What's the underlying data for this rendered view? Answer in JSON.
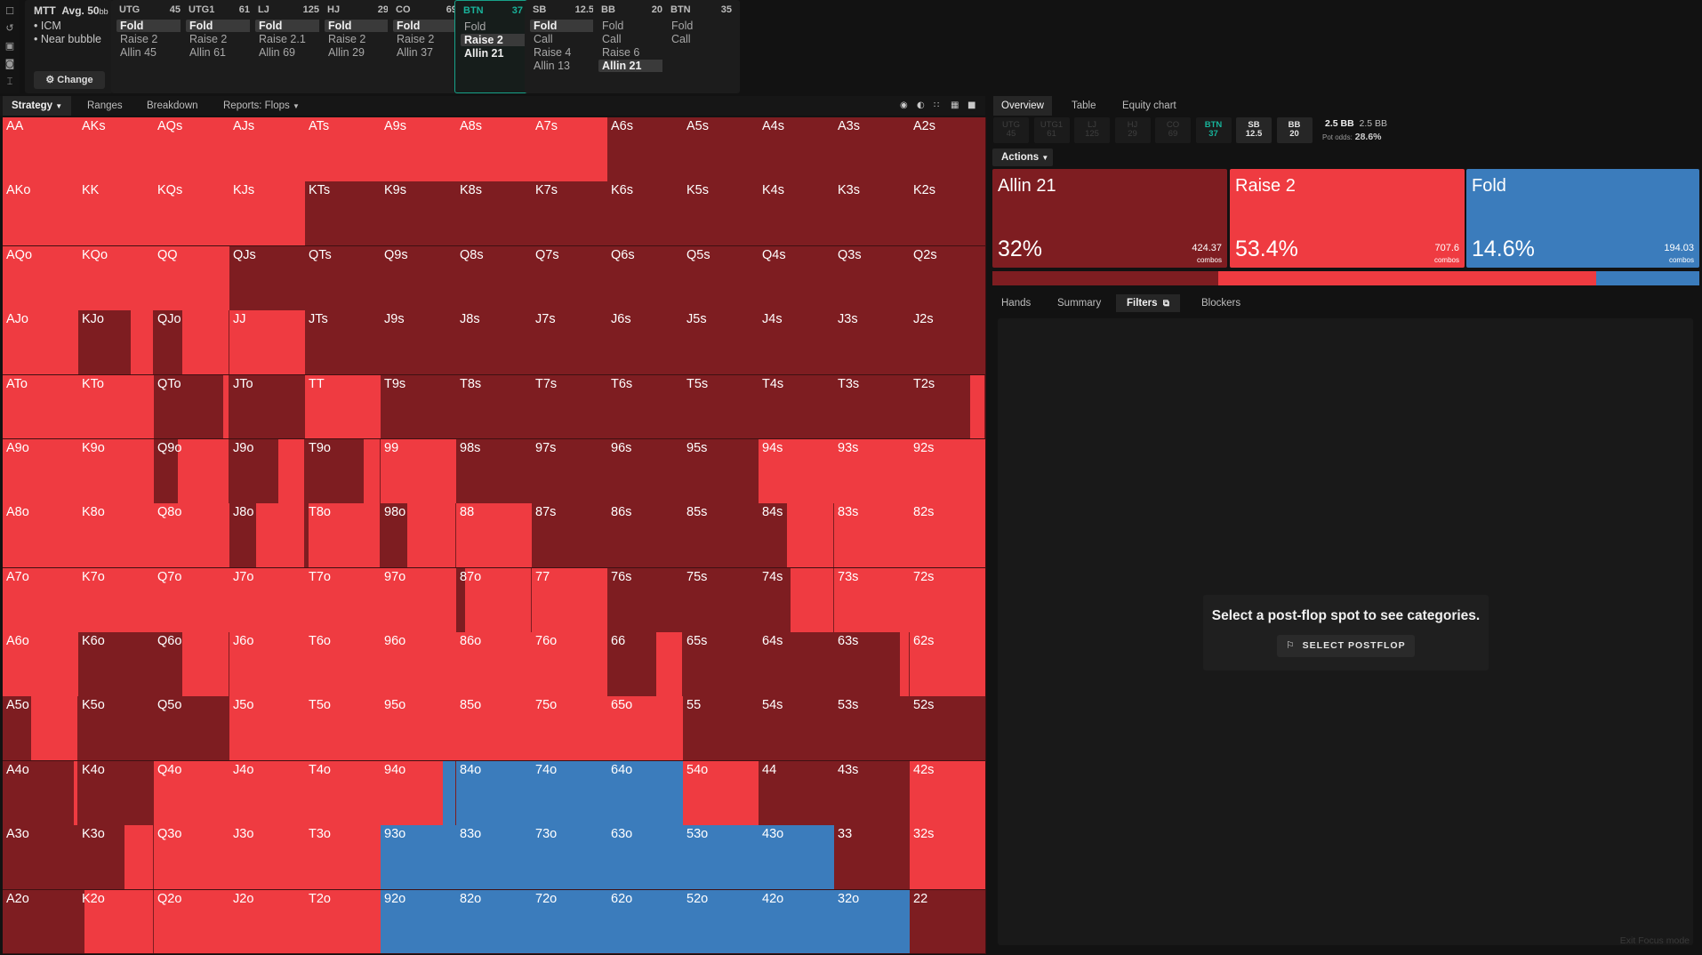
{
  "app": {
    "tournament": {
      "title": "MTT",
      "avg_label": "Avg. 50",
      "avg_unit": "bb",
      "bullets": [
        "ICM",
        "Near bubble"
      ],
      "change_label": "Change"
    },
    "left_icons": [
      "new-file-icon",
      "history-icon",
      "save-icon",
      "controller-icon",
      "text-cursor-icon"
    ],
    "settings_icon": "sliders-icon"
  },
  "positions": [
    {
      "name": "UTG",
      "stack": "45",
      "actions": [
        "Fold",
        "Raise 2",
        "Allin 45"
      ],
      "chosen": 0
    },
    {
      "name": "UTG1",
      "stack": "61",
      "actions": [
        "Fold",
        "Raise 2",
        "Allin 61"
      ],
      "chosen": 0
    },
    {
      "name": "LJ",
      "stack": "125",
      "actions": [
        "Fold",
        "Raise 2.1",
        "Allin 69"
      ],
      "chosen": 0
    },
    {
      "name": "HJ",
      "stack": "29",
      "actions": [
        "Fold",
        "Raise 2",
        "Allin 29"
      ],
      "chosen": 0
    },
    {
      "name": "CO",
      "stack": "69",
      "actions": [
        "Fold",
        "Raise 2",
        "Allin 37"
      ],
      "chosen": 0
    },
    {
      "name": "BTN",
      "stack": "37",
      "actions": [
        "Fold",
        "Raise 2",
        "Allin 21"
      ],
      "chosen": 1,
      "selected": true
    },
    {
      "name": "SB",
      "stack": "12.5",
      "actions": [
        "Fold",
        "Call",
        "Raise 4",
        "Allin 13"
      ],
      "chosen": 0
    },
    {
      "name": "BB",
      "stack": "20",
      "actions": [
        "Fold",
        "Call",
        "Raise 6",
        "Allin 21"
      ],
      "chosen": 3
    },
    {
      "name": "BTN",
      "stack": "35",
      "actions": [
        "Fold",
        "Call"
      ],
      "chosen": -1
    }
  ],
  "toolbar": {
    "strategy": "Strategy",
    "ranges": "Ranges",
    "breakdown": "Breakdown",
    "reports": "Reports: Flops",
    "view_icons": [
      "hole-card-icon",
      "contrast-icon",
      "compact-grid-icon",
      "grid-icon",
      "square-icon"
    ]
  },
  "colors": {
    "allin": "#7e1d21",
    "raise": "#ef3b41",
    "fold": "#3b7cbc",
    "selected": "#17a38a"
  },
  "ranks": [
    "A",
    "K",
    "Q",
    "J",
    "T",
    "9",
    "8",
    "7",
    "6",
    "5",
    "4",
    "3",
    "2"
  ],
  "grid": {
    "AA": {
      "a": 0,
      "r": 1,
      "f": 0
    },
    "AKs": {
      "a": 0,
      "r": 1,
      "f": 0
    },
    "AQs": {
      "a": 0,
      "r": 1,
      "f": 0
    },
    "AJs": {
      "a": 0,
      "r": 1,
      "f": 0
    },
    "ATs": {
      "a": 0,
      "r": 1,
      "f": 0
    },
    "A9s": {
      "a": 0,
      "r": 1,
      "f": 0
    },
    "A8s": {
      "a": 0,
      "r": 1,
      "f": 0
    },
    "A7s": {
      "a": 0,
      "r": 1,
      "f": 0
    },
    "A6s": {
      "a": 1,
      "r": 0,
      "f": 0
    },
    "A5s": {
      "a": 1,
      "r": 0,
      "f": 0
    },
    "A4s": {
      "a": 1,
      "r": 0,
      "f": 0
    },
    "A3s": {
      "a": 1,
      "r": 0,
      "f": 0
    },
    "A2s": {
      "a": 1,
      "r": 0,
      "f": 0
    },
    "AKo": {
      "a": 0,
      "r": 1,
      "f": 0
    },
    "KK": {
      "a": 0,
      "r": 1,
      "f": 0
    },
    "KQs": {
      "a": 0,
      "r": 1,
      "f": 0
    },
    "KJs": {
      "a": 0,
      "r": 1,
      "f": 0
    },
    "KTs": {
      "a": 1,
      "r": 0,
      "f": 0
    },
    "K9s": {
      "a": 1,
      "r": 0,
      "f": 0
    },
    "K8s": {
      "a": 1,
      "r": 0,
      "f": 0
    },
    "K7s": {
      "a": 1,
      "r": 0,
      "f": 0
    },
    "K6s": {
      "a": 1,
      "r": 0,
      "f": 0
    },
    "K5s": {
      "a": 1,
      "r": 0,
      "f": 0
    },
    "K4s": {
      "a": 1,
      "r": 0,
      "f": 0
    },
    "K3s": {
      "a": 1,
      "r": 0,
      "f": 0
    },
    "K2s": {
      "a": 1,
      "r": 0,
      "f": 0
    },
    "AQo": {
      "a": 0,
      "r": 1,
      "f": 0
    },
    "KQo": {
      "a": 0,
      "r": 1,
      "f": 0
    },
    "QQ": {
      "a": 0,
      "r": 1,
      "f": 0
    },
    "QJs": {
      "a": 1,
      "r": 0,
      "f": 0
    },
    "QTs": {
      "a": 1,
      "r": 0,
      "f": 0
    },
    "Q9s": {
      "a": 1,
      "r": 0,
      "f": 0
    },
    "Q8s": {
      "a": 1,
      "r": 0,
      "f": 0
    },
    "Q7s": {
      "a": 1,
      "r": 0,
      "f": 0
    },
    "Q6s": {
      "a": 1,
      "r": 0,
      "f": 0
    },
    "Q5s": {
      "a": 1,
      "r": 0,
      "f": 0
    },
    "Q4s": {
      "a": 1,
      "r": 0,
      "f": 0
    },
    "Q3s": {
      "a": 1,
      "r": 0,
      "f": 0
    },
    "Q2s": {
      "a": 1,
      "r": 0,
      "f": 0
    },
    "AJo": {
      "a": 0,
      "r": 1,
      "f": 0
    },
    "KJo": {
      "a": 0.7,
      "r": 0.3,
      "f": 0
    },
    "QJo": {
      "a": 0.38,
      "r": 0.62,
      "f": 0
    },
    "JJ": {
      "a": 0,
      "r": 1,
      "f": 0
    },
    "JTs": {
      "a": 1,
      "r": 0,
      "f": 0
    },
    "J9s": {
      "a": 1,
      "r": 0,
      "f": 0
    },
    "J8s": {
      "a": 1,
      "r": 0,
      "f": 0
    },
    "J7s": {
      "a": 1,
      "r": 0,
      "f": 0
    },
    "J6s": {
      "a": 1,
      "r": 0,
      "f": 0
    },
    "J5s": {
      "a": 1,
      "r": 0,
      "f": 0
    },
    "J4s": {
      "a": 1,
      "r": 0,
      "f": 0
    },
    "J3s": {
      "a": 1,
      "r": 0,
      "f": 0
    },
    "J2s": {
      "a": 1,
      "r": 0,
      "f": 0
    },
    "ATo": {
      "a": 0,
      "r": 1,
      "f": 0
    },
    "KTo": {
      "a": 0,
      "r": 1,
      "f": 0
    },
    "QTo": {
      "a": 0.92,
      "r": 0.08,
      "f": 0
    },
    "JTo": {
      "a": 1,
      "r": 0,
      "f": 0
    },
    "TT": {
      "a": 0,
      "r": 1,
      "f": 0
    },
    "T9s": {
      "a": 1,
      "r": 0,
      "f": 0
    },
    "T8s": {
      "a": 1,
      "r": 0,
      "f": 0
    },
    "T7s": {
      "a": 1,
      "r": 0,
      "f": 0
    },
    "T6s": {
      "a": 1,
      "r": 0,
      "f": 0
    },
    "T5s": {
      "a": 1,
      "r": 0,
      "f": 0
    },
    "T4s": {
      "a": 1,
      "r": 0,
      "f": 0
    },
    "T3s": {
      "a": 1,
      "r": 0,
      "f": 0
    },
    "T2s": {
      "a": 0.8,
      "r": 0.2,
      "f": 0
    },
    "A9o": {
      "a": 0,
      "r": 1,
      "f": 0
    },
    "K9o": {
      "a": 0,
      "r": 1,
      "f": 0
    },
    "Q9o": {
      "a": 0.32,
      "r": 0.68,
      "f": 0
    },
    "J9o": {
      "a": 0.65,
      "r": 0.35,
      "f": 0
    },
    "T9o": {
      "a": 0.78,
      "r": 0.22,
      "f": 0
    },
    "99": {
      "a": 0,
      "r": 1,
      "f": 0
    },
    "98s": {
      "a": 1,
      "r": 0,
      "f": 0
    },
    "97s": {
      "a": 1,
      "r": 0,
      "f": 0
    },
    "96s": {
      "a": 1,
      "r": 0,
      "f": 0
    },
    "95s": {
      "a": 1,
      "r": 0,
      "f": 0
    },
    "94s": {
      "a": 0,
      "r": 1,
      "f": 0
    },
    "93s": {
      "a": 0,
      "r": 1,
      "f": 0
    },
    "92s": {
      "a": 0,
      "r": 1,
      "f": 0
    },
    "A8o": {
      "a": 0,
      "r": 1,
      "f": 0
    },
    "K8o": {
      "a": 0,
      "r": 1,
      "f": 0
    },
    "Q8o": {
      "a": 0,
      "r": 1,
      "f": 0
    },
    "J8o": {
      "a": 0.35,
      "r": 0.65,
      "f": 0
    },
    "T8o": {
      "a": 0.05,
      "r": 0.95,
      "f": 0
    },
    "98o": {
      "a": 0.35,
      "r": 0.65,
      "f": 0
    },
    "88": {
      "a": 0,
      "r": 1,
      "f": 0
    },
    "87s": {
      "a": 1,
      "r": 0,
      "f": 0
    },
    "86s": {
      "a": 1,
      "r": 0,
      "f": 0
    },
    "85s": {
      "a": 1,
      "r": 0,
      "f": 0
    },
    "84s": {
      "a": 0.38,
      "r": 0.62,
      "f": 0
    },
    "83s": {
      "a": 0,
      "r": 1,
      "f": 0
    },
    "82s": {
      "a": 0,
      "r": 1,
      "f": 0
    },
    "A7o": {
      "a": 0,
      "r": 1,
      "f": 0
    },
    "K7o": {
      "a": 0,
      "r": 1,
      "f": 0
    },
    "Q7o": {
      "a": 0,
      "r": 1,
      "f": 0
    },
    "J7o": {
      "a": 0,
      "r": 1,
      "f": 0
    },
    "T7o": {
      "a": 0,
      "r": 1,
      "f": 0
    },
    "97o": {
      "a": 0,
      "r": 1,
      "f": 0
    },
    "87o": {
      "a": 0.12,
      "r": 0.88,
      "f": 0
    },
    "77": {
      "a": 0,
      "r": 1,
      "f": 0
    },
    "76s": {
      "a": 1,
      "r": 0,
      "f": 0
    },
    "75s": {
      "a": 1,
      "r": 0,
      "f": 0
    },
    "74s": {
      "a": 0.43,
      "r": 0.57,
      "f": 0
    },
    "73s": {
      "a": 0,
      "r": 1,
      "f": 0
    },
    "72s": {
      "a": 0,
      "r": 1,
      "f": 0
    },
    "A6o": {
      "a": 0,
      "r": 1,
      "f": 0
    },
    "K6o": {
      "a": 1,
      "r": 0,
      "f": 0
    },
    "Q6o": {
      "a": 0.38,
      "r": 0.62,
      "f": 0
    },
    "J6o": {
      "a": 0,
      "r": 1,
      "f": 0
    },
    "T6o": {
      "a": 0,
      "r": 1,
      "f": 0
    },
    "96o": {
      "a": 0,
      "r": 1,
      "f": 0
    },
    "86o": {
      "a": 0,
      "r": 1,
      "f": 0
    },
    "76o": {
      "a": 0,
      "r": 1,
      "f": 0
    },
    "66": {
      "a": 0.65,
      "r": 0.35,
      "f": 0
    },
    "65s": {
      "a": 1,
      "r": 0,
      "f": 0
    },
    "64s": {
      "a": 1,
      "r": 0,
      "f": 0
    },
    "63s": {
      "a": 0.88,
      "r": 0.12,
      "f": 0
    },
    "62s": {
      "a": 0,
      "r": 1,
      "f": 0
    },
    "A5o": {
      "a": 0.38,
      "r": 0.62,
      "f": 0
    },
    "K5o": {
      "a": 1,
      "r": 0,
      "f": 0
    },
    "Q5o": {
      "a": 1,
      "r": 0,
      "f": 0
    },
    "J5o": {
      "a": 0,
      "r": 1,
      "f": 0
    },
    "T5o": {
      "a": 0,
      "r": 1,
      "f": 0
    },
    "95o": {
      "a": 0,
      "r": 1,
      "f": 0
    },
    "85o": {
      "a": 0,
      "r": 1,
      "f": 0
    },
    "75o": {
      "a": 0,
      "r": 1,
      "f": 0
    },
    "65o": {
      "a": 0,
      "r": 1,
      "f": 0
    },
    "55": {
      "a": 1,
      "r": 0,
      "f": 0
    },
    "54s": {
      "a": 1,
      "r": 0,
      "f": 0
    },
    "53s": {
      "a": 1,
      "r": 0,
      "f": 0
    },
    "52s": {
      "a": 1,
      "r": 0,
      "f": 0
    },
    "A4o": {
      "a": 0.95,
      "r": 0.05,
      "f": 0
    },
    "K4o": {
      "a": 1,
      "r": 0,
      "f": 0
    },
    "Q4o": {
      "a": 0,
      "r": 1,
      "f": 0
    },
    "J4o": {
      "a": 0,
      "r": 1,
      "f": 0
    },
    "T4o": {
      "a": 0,
      "r": 1,
      "f": 0
    },
    "94o": {
      "a": 0,
      "r": 0.83,
      "f": 0.17
    },
    "84o": {
      "a": 0,
      "r": 0,
      "f": 1
    },
    "74o": {
      "a": 0,
      "r": 0,
      "f": 1
    },
    "64o": {
      "a": 0,
      "r": 0,
      "f": 1
    },
    "54o": {
      "a": 0,
      "r": 1,
      "f": 0
    },
    "44": {
      "a": 1,
      "r": 0,
      "f": 0
    },
    "43s": {
      "a": 1,
      "r": 0,
      "f": 0
    },
    "42s": {
      "a": 0,
      "r": 1,
      "f": 0
    },
    "A3o": {
      "a": 1,
      "r": 0,
      "f": 0
    },
    "K3o": {
      "a": 0.62,
      "r": 0.38,
      "f": 0
    },
    "Q3o": {
      "a": 0,
      "r": 1,
      "f": 0
    },
    "J3o": {
      "a": 0,
      "r": 1,
      "f": 0
    },
    "T3o": {
      "a": 0,
      "r": 1,
      "f": 0
    },
    "93o": {
      "a": 0,
      "r": 0,
      "f": 1
    },
    "83o": {
      "a": 0,
      "r": 0,
      "f": 1
    },
    "73o": {
      "a": 0,
      "r": 0,
      "f": 1
    },
    "63o": {
      "a": 0,
      "r": 0,
      "f": 1
    },
    "53o": {
      "a": 0,
      "r": 0,
      "f": 1
    },
    "43o": {
      "a": 0,
      "r": 0,
      "f": 1
    },
    "33": {
      "a": 1,
      "r": 0,
      "f": 0
    },
    "32s": {
      "a": 0,
      "r": 1,
      "f": 0
    },
    "A2o": {
      "a": 1,
      "r": 0,
      "f": 0
    },
    "K2o": {
      "a": 0.08,
      "r": 0.92,
      "f": 0
    },
    "Q2o": {
      "a": 0,
      "r": 1,
      "f": 0
    },
    "J2o": {
      "a": 0,
      "r": 1,
      "f": 0
    },
    "T2o": {
      "a": 0,
      "r": 1,
      "f": 0
    },
    "92o": {
      "a": 0,
      "r": 0,
      "f": 1
    },
    "82o": {
      "a": 0,
      "r": 0,
      "f": 1
    },
    "72o": {
      "a": 0,
      "r": 0,
      "f": 1
    },
    "62o": {
      "a": 0,
      "r": 0,
      "f": 1
    },
    "52o": {
      "a": 0,
      "r": 0,
      "f": 1
    },
    "42o": {
      "a": 0,
      "r": 0,
      "f": 1
    },
    "32o": {
      "a": 0,
      "r": 0,
      "f": 1
    },
    "22": {
      "a": 1,
      "r": 0,
      "f": 0
    }
  },
  "right": {
    "tabs": [
      "Overview",
      "Table",
      "Equity chart"
    ],
    "chips": [
      {
        "n": "UTG",
        "s": "45",
        "kind": "past"
      },
      {
        "n": "UTG1",
        "s": "61",
        "kind": "past"
      },
      {
        "n": "LJ",
        "s": "125",
        "kind": "past"
      },
      {
        "n": "HJ",
        "s": "29",
        "kind": "past"
      },
      {
        "n": "CO",
        "s": "69",
        "kind": "past"
      },
      {
        "n": "BTN",
        "s": "37",
        "kind": "cur"
      },
      {
        "n": "SB",
        "s": "12.5",
        "kind": "next"
      },
      {
        "n": "BB",
        "s": "20",
        "kind": "next"
      }
    ],
    "pot": {
      "bb": "2.5 BB",
      "bb2": "2.5 BB",
      "odds_label": "Pot odds:",
      "odds": "28.6%"
    },
    "actions_label": "Actions",
    "cards": [
      {
        "name": "Allin 21",
        "pct": "32%",
        "combos": "424.37",
        "combos_label": "combos",
        "freq": 0.32,
        "color": "#7e1d21"
      },
      {
        "name": "Raise 2",
        "pct": "53.4%",
        "combos": "707.6",
        "combos_label": "combos",
        "freq": 0.534,
        "color": "#ef3b41"
      },
      {
        "name": "Fold",
        "pct": "14.6%",
        "combos": "194.03",
        "combos_label": "combos",
        "freq": 0.146,
        "color": "#3b7cbc"
      }
    ],
    "bottom_tabs": [
      "Hands",
      "Summary",
      "Filters",
      "Blockers"
    ],
    "filters_icon": "copy-icon",
    "empty_message": "Select a post-flop spot to see categories.",
    "select_postflop": "SELECT POSTFLOP",
    "bookmark_icon": "bookmark-icon",
    "exit_focus": "Exit Focus mode"
  }
}
